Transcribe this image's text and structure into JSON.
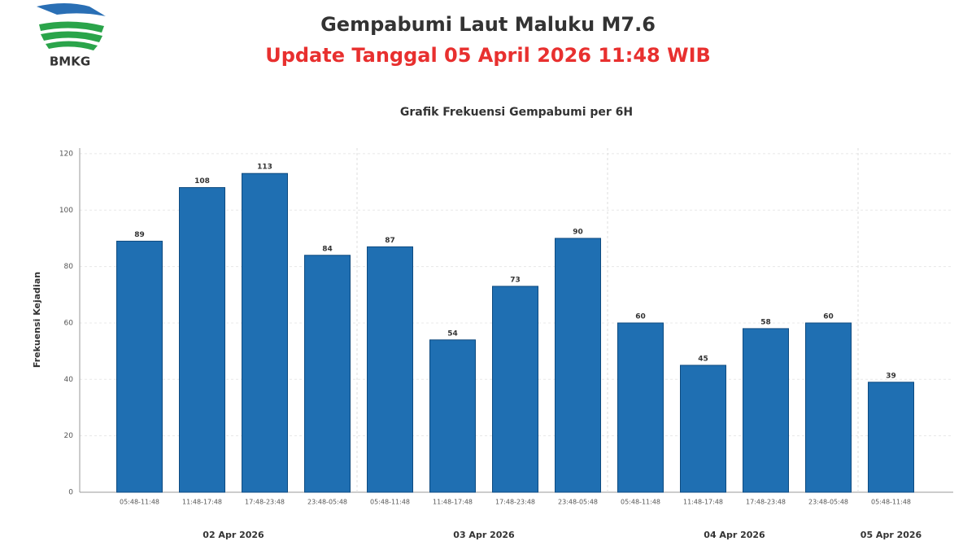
{
  "logo": {
    "text": "BMKG"
  },
  "header": {
    "title": "Gempabumi Laut Maluku M7.6",
    "update": "Update Tanggal 05 April 2026 11:48 WIB"
  },
  "chart_data": {
    "type": "bar",
    "title": "Grafik Frekuensi Gempabumi per 6H",
    "y_label": "Frekuensi Kejadian",
    "categories": [
      "05:48-11:48",
      "11:48-17:48",
      "17:48-23:48",
      "23:48-05:48",
      "05:48-11:48",
      "11:48-17:48",
      "17:48-23:48",
      "23:48-05:48",
      "05:48-11:48",
      "11:48-17:48",
      "17:48-23:48",
      "23:48-05:48",
      "05:48-11:48"
    ],
    "values": [
      89,
      108,
      113,
      84,
      87,
      54,
      73,
      90,
      60,
      45,
      58,
      60,
      39
    ],
    "color": "#1f6fb2",
    "ylim": [
      0,
      122
    ],
    "yticks": [
      0,
      20,
      40,
      60,
      80,
      100,
      120
    ],
    "grid": true,
    "groups": [
      {
        "label": "02 Apr 2026",
        "span": 4
      },
      {
        "label": "03 Apr 2026",
        "span": 4
      },
      {
        "label": "04 Apr 2026",
        "span": 4
      },
      {
        "label": "05 Apr 2026",
        "span": 1
      }
    ]
  }
}
